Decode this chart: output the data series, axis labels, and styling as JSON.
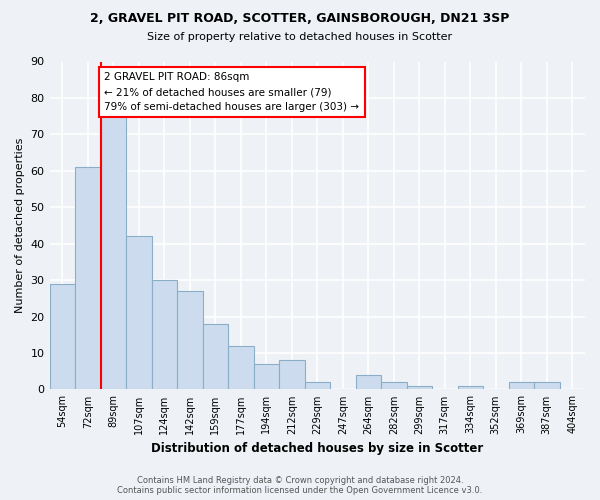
{
  "title_line1": "2, GRAVEL PIT ROAD, SCOTTER, GAINSBOROUGH, DN21 3SP",
  "title_line2": "Size of property relative to detached houses in Scotter",
  "xlabel": "Distribution of detached houses by size in Scotter",
  "ylabel": "Number of detached properties",
  "bin_labels": [
    "54sqm",
    "72sqm",
    "89sqm",
    "107sqm",
    "124sqm",
    "142sqm",
    "159sqm",
    "177sqm",
    "194sqm",
    "212sqm",
    "229sqm",
    "247sqm",
    "264sqm",
    "282sqm",
    "299sqm",
    "317sqm",
    "334sqm",
    "352sqm",
    "369sqm",
    "387sqm",
    "404sqm"
  ],
  "bar_heights": [
    29,
    61,
    75,
    42,
    30,
    27,
    18,
    12,
    7,
    8,
    2,
    0,
    4,
    2,
    1,
    0,
    1,
    0,
    2,
    2,
    0
  ],
  "bar_color": "#ccdcee",
  "bar_edge_color": "#8aaec8",
  "annotation_text": "2 GRAVEL PIT ROAD: 86sqm\n← 21% of detached houses are smaller (79)\n79% of semi-detached houses are larger (303) →",
  "annotation_box_color": "white",
  "annotation_box_edge_color": "red",
  "vline_color": "red",
  "footnote": "Contains HM Land Registry data © Crown copyright and database right 2024.\nContains public sector information licensed under the Open Government Licence v3.0.",
  "ylim": [
    0,
    90
  ],
  "yticks": [
    0,
    10,
    20,
    30,
    40,
    50,
    60,
    70,
    80,
    90
  ],
  "background_color": "#eef2f7",
  "grid_color": "white"
}
